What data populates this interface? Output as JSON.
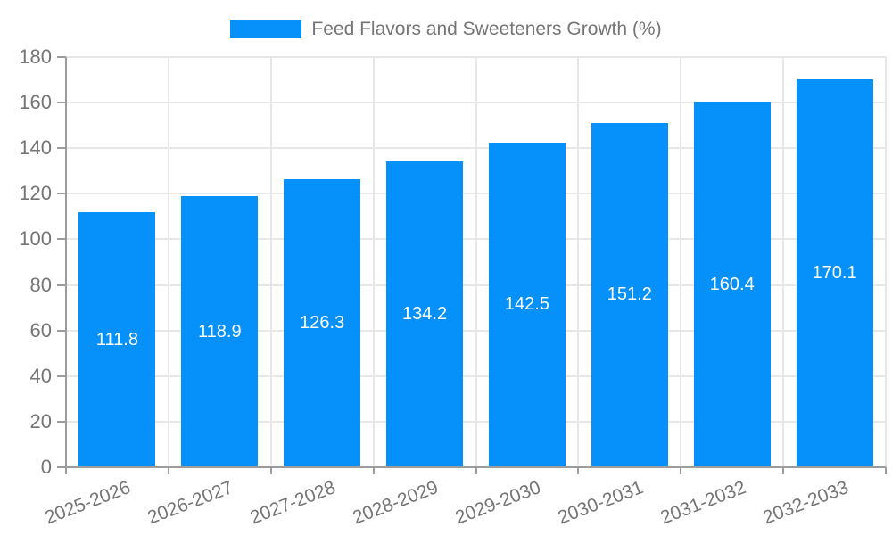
{
  "chart_data": {
    "type": "bar",
    "title": "Feed Flavors and Sweeteners Growth (%)",
    "categories": [
      "2025-2026",
      "2026-2027",
      "2027-2028",
      "2028-2029",
      "2029-2030",
      "2030-2031",
      "2031-2032",
      "2032-2033"
    ],
    "values": [
      111.8,
      118.9,
      126.3,
      134.2,
      142.5,
      151.2,
      160.4,
      170.1
    ],
    "value_labels": [
      "111.8",
      "118.9",
      "126.3",
      "134.2",
      "142.5",
      "151.2",
      "160.4",
      "170.1"
    ],
    "xlabel": "",
    "ylabel": "",
    "ylim": [
      0,
      180
    ],
    "ytick_step": 20,
    "ytick_labels": [
      "0",
      "20",
      "40",
      "60",
      "80",
      "100",
      "120",
      "140",
      "160",
      "180"
    ],
    "grid": true,
    "legend_position": "top-center",
    "colors": {
      "bar": "#0690FA",
      "value_label": "#FFFFFF",
      "axis_text": "#757575",
      "grid_line": "#E7E7E7",
      "axis_line": "#9C9C9C"
    }
  }
}
